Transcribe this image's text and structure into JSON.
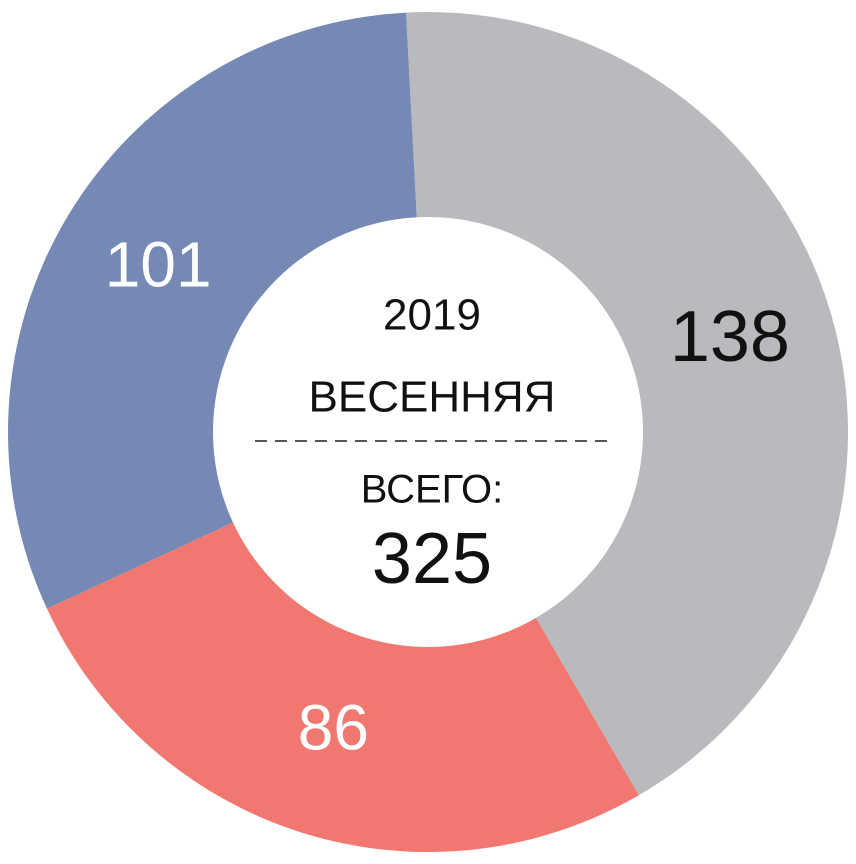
{
  "chart_data": {
    "type": "donut",
    "categories": [
      null,
      null,
      null
    ],
    "values": [
      138,
      86,
      101
    ],
    "colors": [
      "#b9babe",
      "#f07870",
      "#7589b4"
    ],
    "label_colors": [
      "#111111",
      "#ffffff",
      "#ffffff"
    ],
    "center_text": [
      "2019",
      "ВЕСЕННЯЯ"
    ],
    "total_label": "ВСЕГО:",
    "total": 325
  }
}
